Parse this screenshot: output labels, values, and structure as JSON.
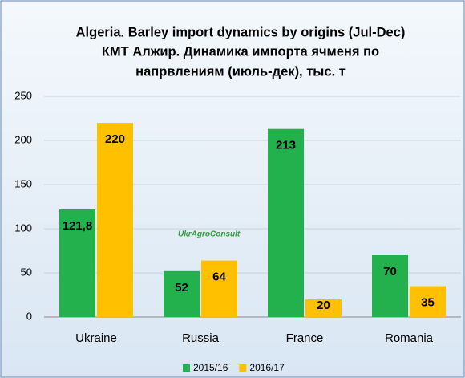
{
  "chart_data": {
    "type": "bar",
    "title": "Algeria. Barley import dynamics by origins (Jul-Dec)",
    "subtitle": [
      "КМТ Алжир. Динамика импорта ячменя по",
      "напрвлениям (июль-дек), тыс. т"
    ],
    "annotation": "UkrAgroConsult",
    "categories": [
      "Ukraine",
      "Russia",
      "France",
      "Romania"
    ],
    "series": [
      {
        "name": "2015/16",
        "color": "#22b14c",
        "values": [
          121.8,
          52,
          213,
          70
        ],
        "value_labels": [
          "121,8",
          "52",
          "213",
          "70"
        ]
      },
      {
        "name": "2016/17",
        "color": "#ffc000",
        "values": [
          220,
          64,
          20,
          35
        ],
        "value_labels": [
          "220",
          "64",
          "20",
          "35"
        ]
      }
    ],
    "ylim": [
      0,
      250
    ],
    "yticks": [
      0,
      50,
      100,
      150,
      200,
      250
    ],
    "grid": true,
    "legend": "bottom"
  }
}
